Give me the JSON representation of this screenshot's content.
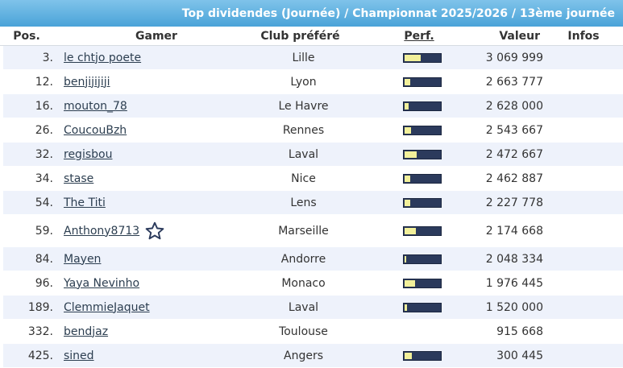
{
  "banner": {
    "title": "Top dividendes (Journée) / Championnat 2025/2026 / 13ème journée"
  },
  "headers": {
    "pos": "Pos.",
    "gamer": "Gamer",
    "club": "Club préféré",
    "perf": "Perf.",
    "valeur": "Valeur",
    "infos": "Infos"
  },
  "colors": {
    "banner": "#4aa3d8",
    "row_alt": "#eef2fb",
    "bar_dark": "#2b3a5c",
    "bar_fill": "#f2f09a"
  },
  "rows": [
    {
      "pos": "3.",
      "gamer": "le chtjo poete",
      "club": "Lille",
      "perf": 0.45,
      "valeur": "3 069 999"
    },
    {
      "pos": "12.",
      "gamer": "benjijijiji",
      "club": "Lyon",
      "perf": 0.15,
      "valeur": "2 663 777"
    },
    {
      "pos": "16.",
      "gamer": "mouton_78",
      "club": "Le Havre",
      "perf": 0.12,
      "valeur": "2 628 000"
    },
    {
      "pos": "26.",
      "gamer": "CoucouBzh",
      "club": "Rennes",
      "perf": 0.18,
      "valeur": "2 543 667"
    },
    {
      "pos": "32.",
      "gamer": "regisbou",
      "club": "Laval",
      "perf": 0.35,
      "valeur": "2 472 667"
    },
    {
      "pos": "34.",
      "gamer": "stase",
      "club": "Nice",
      "perf": 0.15,
      "valeur": "2 462 887"
    },
    {
      "pos": "54.",
      "gamer": "The Titi",
      "club": "Lens",
      "perf": 0.15,
      "valeur": "2 227 778"
    },
    {
      "pos": "59.",
      "gamer": "Anthony8713",
      "club": "Marseille",
      "perf": 0.32,
      "valeur": "2 174 668",
      "icon": "star-outline-icon"
    },
    {
      "pos": "84.",
      "gamer": "Mayen",
      "club": "Andorre",
      "perf": 0.04,
      "valeur": "2 048 334"
    },
    {
      "pos": "96.",
      "gamer": "Yaya Nevinho",
      "club": "Monaco",
      "perf": 0.3,
      "valeur": "1 976 445"
    },
    {
      "pos": "189.",
      "gamer": "ClemmieJaquet",
      "club": "Laval",
      "perf": 0.06,
      "valeur": "1 520 000"
    },
    {
      "pos": "332.",
      "gamer": "bendjaz",
      "club": "Toulouse",
      "perf": null,
      "valeur": "915 668"
    },
    {
      "pos": "425.",
      "gamer": "sined",
      "club": "Angers",
      "perf": 0.2,
      "valeur": "300 445"
    }
  ]
}
